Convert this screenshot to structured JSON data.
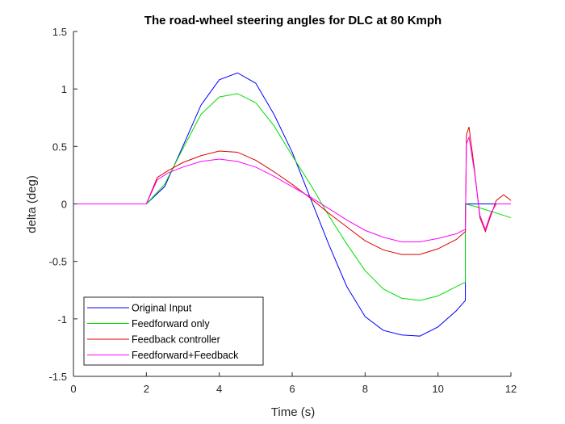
{
  "chart_data": {
    "type": "line",
    "title": "The road-wheel steering angles for DLC at 80 Kmph",
    "xlabel": "Time (s)",
    "ylabel": "delta (deg)",
    "xlim": [
      0,
      12
    ],
    "ylim": [
      -1.5,
      1.5
    ],
    "xticks": [
      0,
      2,
      4,
      6,
      8,
      10,
      12
    ],
    "yticks": [
      -1.5,
      -1,
      -0.5,
      0,
      0.5,
      1,
      1.5
    ],
    "ytick_labels": [
      "-1.5",
      "-1",
      "-0.5",
      "0",
      "0.5",
      "1",
      "1.5"
    ],
    "grid": false,
    "legend_position": "bottom-left",
    "series": [
      {
        "name": "Original Input",
        "color": "#0000ff",
        "x": [
          0,
          2,
          2.5,
          3,
          3.5,
          4,
          4.5,
          5,
          5.5,
          6,
          6.5,
          7,
          7.5,
          8,
          8.5,
          9,
          9.5,
          10,
          10.5,
          10.75,
          10.75,
          11,
          11.5,
          12
        ],
        "y": [
          0,
          0,
          0.15,
          0.5,
          0.86,
          1.08,
          1.14,
          1.05,
          0.78,
          0.45,
          0.05,
          -0.35,
          -0.72,
          -0.98,
          -1.1,
          -1.14,
          -1.15,
          -1.07,
          -0.93,
          -0.84,
          0,
          0,
          0,
          0
        ]
      },
      {
        "name": "Feedforward only",
        "color": "#00dd00",
        "x": [
          0,
          2,
          2.5,
          3,
          3.5,
          4,
          4.5,
          5,
          5.5,
          6,
          6.5,
          7,
          7.5,
          8,
          8.5,
          9,
          9.5,
          10,
          10.5,
          10.75,
          10.75,
          11,
          11.5,
          12
        ],
        "y": [
          0,
          0,
          0.17,
          0.48,
          0.78,
          0.93,
          0.96,
          0.88,
          0.68,
          0.42,
          0.17,
          -0.1,
          -0.35,
          -0.58,
          -0.74,
          -0.82,
          -0.84,
          -0.8,
          -0.72,
          -0.68,
          0,
          -0.02,
          -0.07,
          -0.12
        ]
      },
      {
        "name": "Feedback controller",
        "color": "#dd0000",
        "x": [
          0,
          2,
          2.3,
          2.6,
          3,
          3.5,
          4,
          4.5,
          5,
          5.5,
          6,
          6.5,
          7,
          7.5,
          8,
          8.5,
          9,
          9.5,
          10,
          10.5,
          10.75,
          10.78,
          10.85,
          11,
          11.15,
          11.3,
          11.45,
          11.6,
          11.8,
          12
        ],
        "y": [
          0,
          0,
          0.23,
          0.29,
          0.36,
          0.42,
          0.46,
          0.45,
          0.38,
          0.28,
          0.17,
          0.05,
          -0.08,
          -0.2,
          -0.32,
          -0.4,
          -0.44,
          -0.44,
          -0.39,
          -0.31,
          -0.24,
          0.6,
          0.67,
          0.3,
          -0.12,
          -0.24,
          -0.1,
          0.03,
          0.08,
          0.03
        ]
      },
      {
        "name": "Feedforward+Feedback",
        "color": "#ff00ff",
        "x": [
          0,
          2,
          2.3,
          2.6,
          3,
          3.5,
          4,
          4.5,
          5,
          5.5,
          6,
          6.5,
          7,
          7.5,
          8,
          8.5,
          9,
          9.5,
          10,
          10.5,
          10.75,
          10.78,
          10.85,
          11,
          11.15,
          11.3,
          11.45,
          11.6,
          11.8,
          12
        ],
        "y": [
          0,
          0,
          0.21,
          0.27,
          0.32,
          0.37,
          0.39,
          0.37,
          0.32,
          0.24,
          0.15,
          0.06,
          -0.04,
          -0.14,
          -0.23,
          -0.29,
          -0.33,
          -0.33,
          -0.3,
          -0.26,
          -0.22,
          0.52,
          0.58,
          0.28,
          -0.1,
          -0.22,
          -0.08,
          0.0,
          0.0,
          0.0
        ]
      }
    ]
  }
}
